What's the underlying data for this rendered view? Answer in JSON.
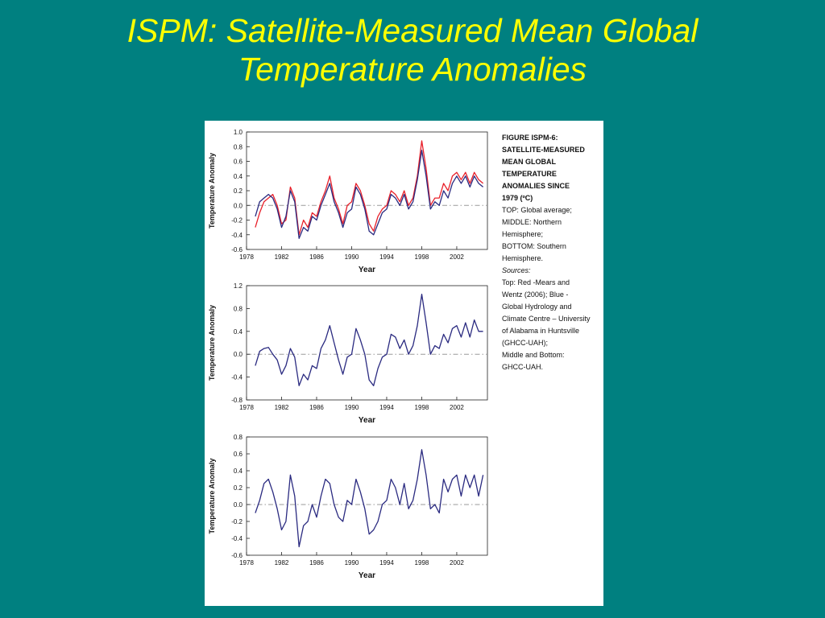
{
  "slide": {
    "title_line1": "ISPM: Satellite-Measured Mean Global",
    "title_line2": "Temperature Anomalies",
    "background_color": "#008080",
    "title_color": "#ffff00"
  },
  "caption": {
    "heading_lines": [
      "FIGURE ISPM-6:",
      "SATELLITE-MEASURED",
      "MEAN GLOBAL",
      "TEMPERATURE",
      "ANOMALIES SINCE",
      "1979 (ºC)"
    ],
    "body_lines_a": [
      "TOP: Global average;",
      "MIDDLE: Northern",
      "Hemisphere;",
      "BOTTOM: Southern",
      "Hemisphere."
    ],
    "sources_label": "Sources:",
    "body_lines_b": [
      "Top: Red -Mears and",
      "Wentz (2006); Blue -",
      "Global Hydrology and",
      "Climate Centre – University",
      "of Alabama in Huntsville",
      "(GHCC-UAH);",
      "Middle and Bottom:",
      "GHCC-UAH."
    ]
  },
  "chart_data": [
    {
      "type": "line",
      "panel": "top",
      "xlabel": "Year",
      "ylabel": "Temperature Anomaly",
      "xlim": [
        1978,
        2005.5
      ],
      "ylim": [
        -0.6,
        1.0
      ],
      "x_ticks": [
        1978,
        1982,
        1986,
        1990,
        1994,
        1998,
        2002
      ],
      "x_tick_labels": [
        "1978",
        "1982",
        "1986",
        "1990",
        "1994",
        "1998",
        "2002"
      ],
      "y_ticks": [
        -0.6,
        -0.4,
        -0.2,
        0.0,
        0.2,
        0.4,
        0.6,
        0.8,
        1.0
      ],
      "y_tick_labels": [
        "-0.6",
        "-0.4",
        "-0.2",
        "0.0",
        "0.2",
        "0.4",
        "0.6",
        "0.8",
        "1.0"
      ],
      "zero_line": true,
      "series": [
        {
          "color": "#e8202a",
          "x": [
            1979.0,
            1979.5,
            1980.0,
            1980.5,
            1981.0,
            1981.5,
            1982.0,
            1982.5,
            1983.0,
            1983.5,
            1984.0,
            1984.5,
            1985.0,
            1985.5,
            1986.0,
            1986.5,
            1987.0,
            1987.5,
            1988.0,
            1988.5,
            1989.0,
            1989.5,
            1990.0,
            1990.5,
            1991.0,
            1991.5,
            1992.0,
            1992.5,
            1993.0,
            1993.5,
            1994.0,
            1994.5,
            1995.0,
            1995.5,
            1996.0,
            1996.5,
            1997.0,
            1997.5,
            1998.0,
            1998.5,
            1999.0,
            1999.5,
            2000.0,
            2000.5,
            2001.0,
            2001.5,
            2002.0,
            2002.5,
            2003.0,
            2003.5,
            2004.0,
            2004.5,
            2005.0
          ],
          "y": [
            -0.3,
            -0.1,
            0.05,
            0.1,
            0.15,
            0.0,
            -0.25,
            -0.2,
            0.25,
            0.1,
            -0.4,
            -0.2,
            -0.3,
            -0.1,
            -0.15,
            0.05,
            0.2,
            0.4,
            0.1,
            -0.05,
            -0.25,
            0.0,
            0.05,
            0.3,
            0.2,
            0.0,
            -0.25,
            -0.35,
            -0.15,
            -0.05,
            0.0,
            0.2,
            0.15,
            0.05,
            0.2,
            0.0,
            0.1,
            0.4,
            0.88,
            0.5,
            0.0,
            0.1,
            0.1,
            0.3,
            0.2,
            0.4,
            0.45,
            0.35,
            0.45,
            0.3,
            0.45,
            0.35,
            0.3
          ]
        },
        {
          "color": "#2a2a80",
          "x": [
            1979.0,
            1979.5,
            1980.0,
            1980.5,
            1981.0,
            1981.5,
            1982.0,
            1982.5,
            1983.0,
            1983.5,
            1984.0,
            1984.5,
            1985.0,
            1985.5,
            1986.0,
            1986.5,
            1987.0,
            1987.5,
            1988.0,
            1988.5,
            1989.0,
            1989.5,
            1990.0,
            1990.5,
            1991.0,
            1991.5,
            1992.0,
            1992.5,
            1993.0,
            1993.5,
            1994.0,
            1994.5,
            1995.0,
            1995.5,
            1996.0,
            1996.5,
            1997.0,
            1997.5,
            1998.0,
            1998.5,
            1999.0,
            1999.5,
            2000.0,
            2000.5,
            2001.0,
            2001.5,
            2002.0,
            2002.5,
            2003.0,
            2003.5,
            2004.0,
            2004.5,
            2005.0
          ],
          "y": [
            -0.15,
            0.05,
            0.1,
            0.15,
            0.1,
            -0.05,
            -0.3,
            -0.15,
            0.2,
            0.05,
            -0.45,
            -0.3,
            -0.35,
            -0.15,
            -0.2,
            0.0,
            0.15,
            0.3,
            0.05,
            -0.1,
            -0.3,
            -0.1,
            -0.05,
            0.25,
            0.15,
            -0.05,
            -0.35,
            -0.4,
            -0.25,
            -0.1,
            -0.05,
            0.15,
            0.1,
            0.0,
            0.15,
            -0.05,
            0.05,
            0.35,
            0.75,
            0.4,
            -0.05,
            0.05,
            0.0,
            0.2,
            0.1,
            0.3,
            0.4,
            0.3,
            0.4,
            0.25,
            0.4,
            0.3,
            0.25
          ]
        }
      ]
    },
    {
      "type": "line",
      "panel": "middle",
      "xlabel": "Year",
      "ylabel": "Temperature Anomaly",
      "xlim": [
        1978,
        2005.5
      ],
      "ylim": [
        -0.8,
        1.2
      ],
      "x_ticks": [
        1978,
        1982,
        1986,
        1990,
        1994,
        1998,
        2002
      ],
      "x_tick_labels": [
        "1978",
        "1982",
        "1986",
        "1990",
        "1994",
        "1998",
        "2002"
      ],
      "y_ticks": [
        -0.8,
        -0.4,
        0.0,
        0.4,
        0.8,
        1.2
      ],
      "y_tick_labels": [
        "-0.8",
        "-0.4",
        "0.0",
        "0.4",
        "0.8",
        "1.2"
      ],
      "zero_line": true,
      "series": [
        {
          "color": "#2a2a80",
          "x": [
            1979.0,
            1979.5,
            1980.0,
            1980.5,
            1981.0,
            1981.5,
            1982.0,
            1982.5,
            1983.0,
            1983.5,
            1984.0,
            1984.5,
            1985.0,
            1985.5,
            1986.0,
            1986.5,
            1987.0,
            1987.5,
            1988.0,
            1988.5,
            1989.0,
            1989.5,
            1990.0,
            1990.5,
            1991.0,
            1991.5,
            1992.0,
            1992.5,
            1993.0,
            1993.5,
            1994.0,
            1994.5,
            1995.0,
            1995.5,
            1996.0,
            1996.5,
            1997.0,
            1997.5,
            1998.0,
            1998.5,
            1999.0,
            1999.5,
            2000.0,
            2000.5,
            2001.0,
            2001.5,
            2002.0,
            2002.5,
            2003.0,
            2003.5,
            2004.0,
            2004.5,
            2005.0
          ],
          "y": [
            -0.2,
            0.05,
            0.1,
            0.12,
            0.0,
            -0.1,
            -0.35,
            -0.2,
            0.1,
            -0.05,
            -0.55,
            -0.35,
            -0.45,
            -0.2,
            -0.25,
            0.1,
            0.25,
            0.5,
            0.2,
            -0.1,
            -0.35,
            -0.05,
            0.0,
            0.45,
            0.25,
            0.0,
            -0.45,
            -0.55,
            -0.25,
            -0.05,
            0.0,
            0.35,
            0.3,
            0.1,
            0.25,
            0.0,
            0.15,
            0.5,
            1.05,
            0.55,
            0.0,
            0.15,
            0.1,
            0.35,
            0.2,
            0.45,
            0.5,
            0.3,
            0.55,
            0.3,
            0.6,
            0.4,
            0.4
          ]
        }
      ]
    },
    {
      "type": "line",
      "panel": "bottom",
      "xlabel": "Year",
      "ylabel": "Temperature Anomaly",
      "xlim": [
        1978,
        2005.5
      ],
      "ylim": [
        -0.6,
        0.8
      ],
      "x_ticks": [
        1978,
        1982,
        1986,
        1990,
        1994,
        1998,
        2002
      ],
      "x_tick_labels": [
        "1978",
        "1982",
        "1986",
        "1990",
        "1994",
        "1998",
        "2002"
      ],
      "y_ticks": [
        -0.6,
        -0.4,
        -0.2,
        0.0,
        0.2,
        0.4,
        0.6,
        0.8
      ],
      "y_tick_labels": [
        "-0.6",
        "-0.4",
        "-0.2",
        "0.0",
        "0.2",
        "0.4",
        "0.6",
        "0.8"
      ],
      "zero_line": true,
      "series": [
        {
          "color": "#2a2a80",
          "x": [
            1979.0,
            1979.5,
            1980.0,
            1980.5,
            1981.0,
            1981.5,
            1982.0,
            1982.5,
            1983.0,
            1983.5,
            1984.0,
            1984.5,
            1985.0,
            1985.5,
            1986.0,
            1986.5,
            1987.0,
            1987.5,
            1988.0,
            1988.5,
            1989.0,
            1989.5,
            1990.0,
            1990.5,
            1991.0,
            1991.5,
            1992.0,
            1992.5,
            1993.0,
            1993.5,
            1994.0,
            1994.5,
            1995.0,
            1995.5,
            1996.0,
            1996.5,
            1997.0,
            1997.5,
            1998.0,
            1998.5,
            1999.0,
            1999.5,
            2000.0,
            2000.5,
            2001.0,
            2001.5,
            2002.0,
            2002.5,
            2003.0,
            2003.5,
            2004.0,
            2004.5,
            2005.0
          ],
          "y": [
            -0.1,
            0.05,
            0.25,
            0.3,
            0.15,
            -0.05,
            -0.3,
            -0.2,
            0.35,
            0.1,
            -0.5,
            -0.25,
            -0.2,
            0.0,
            -0.15,
            0.1,
            0.3,
            0.25,
            0.0,
            -0.15,
            -0.2,
            0.05,
            0.0,
            0.3,
            0.15,
            -0.05,
            -0.35,
            -0.3,
            -0.2,
            0.0,
            0.05,
            0.3,
            0.2,
            0.0,
            0.25,
            -0.05,
            0.05,
            0.3,
            0.65,
            0.35,
            -0.05,
            0.0,
            -0.1,
            0.3,
            0.15,
            0.3,
            0.35,
            0.1,
            0.35,
            0.2,
            0.35,
            0.1,
            0.35
          ]
        }
      ]
    }
  ]
}
